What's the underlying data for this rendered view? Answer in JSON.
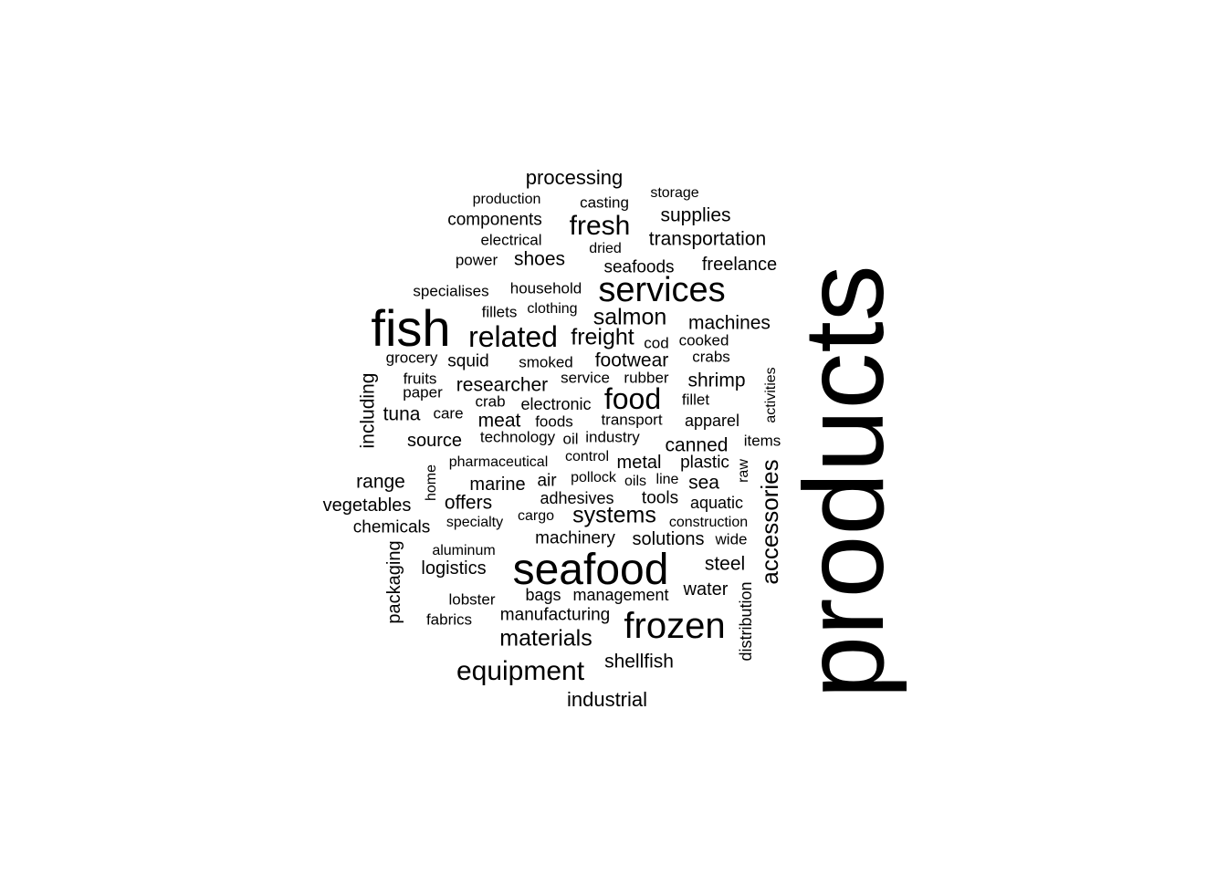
{
  "text_color": "#000000",
  "background_color": "#ffffff",
  "words": [
    {
      "id": "products",
      "text": "products",
      "orientation": "vertical"
    },
    {
      "id": "seafood",
      "text": "seafood",
      "orientation": "horizontal"
    },
    {
      "id": "fish",
      "text": "fish",
      "orientation": "horizontal"
    },
    {
      "id": "services",
      "text": "services",
      "orientation": "horizontal"
    },
    {
      "id": "frozen",
      "text": "frozen",
      "orientation": "horizontal"
    },
    {
      "id": "related",
      "text": "related",
      "orientation": "horizontal"
    },
    {
      "id": "equipment",
      "text": "equipment",
      "orientation": "horizontal"
    },
    {
      "id": "food",
      "text": "food",
      "orientation": "horizontal"
    },
    {
      "id": "fresh",
      "text": "fresh",
      "orientation": "horizontal"
    },
    {
      "id": "materials",
      "text": "materials",
      "orientation": "horizontal"
    },
    {
      "id": "salmon",
      "text": "salmon",
      "orientation": "horizontal"
    },
    {
      "id": "freight",
      "text": "freight",
      "orientation": "horizontal"
    },
    {
      "id": "accessories",
      "text": "accessories",
      "orientation": "vertical"
    },
    {
      "id": "systems",
      "text": "systems",
      "orientation": "horizontal"
    },
    {
      "id": "processing",
      "text": "processing",
      "orientation": "horizontal"
    },
    {
      "id": "industrial",
      "text": "industrial",
      "orientation": "horizontal"
    },
    {
      "id": "machines",
      "text": "machines",
      "orientation": "horizontal"
    },
    {
      "id": "transportation",
      "text": "transportation",
      "orientation": "horizontal"
    },
    {
      "id": "supplies",
      "text": "supplies",
      "orientation": "horizontal"
    },
    {
      "id": "shellfish",
      "text": "shellfish",
      "orientation": "horizontal"
    },
    {
      "id": "freelance",
      "text": "freelance",
      "orientation": "horizontal"
    },
    {
      "id": "footwear",
      "text": "footwear",
      "orientation": "horizontal"
    },
    {
      "id": "shoes",
      "text": "shoes",
      "orientation": "horizontal"
    },
    {
      "id": "components",
      "text": "components",
      "orientation": "horizontal"
    },
    {
      "id": "researcher",
      "text": "researcher",
      "orientation": "horizontal"
    },
    {
      "id": "shrimp",
      "text": "shrimp",
      "orientation": "horizontal"
    },
    {
      "id": "canned",
      "text": "canned",
      "orientation": "horizontal"
    },
    {
      "id": "meat",
      "text": "meat",
      "orientation": "horizontal"
    },
    {
      "id": "range",
      "text": "range",
      "orientation": "horizontal"
    },
    {
      "id": "vegetables",
      "text": "vegetables",
      "orientation": "horizontal"
    },
    {
      "id": "offers",
      "text": "offers",
      "orientation": "horizontal"
    },
    {
      "id": "logistics",
      "text": "logistics",
      "orientation": "horizontal"
    },
    {
      "id": "solutions",
      "text": "solutions",
      "orientation": "horizontal"
    },
    {
      "id": "steel",
      "text": "steel",
      "orientation": "horizontal"
    },
    {
      "id": "water",
      "text": "water",
      "orientation": "horizontal"
    },
    {
      "id": "manufacturing",
      "text": "manufacturing",
      "orientation": "horizontal"
    },
    {
      "id": "including",
      "text": "including",
      "orientation": "vertical"
    },
    {
      "id": "packaging",
      "text": "packaging",
      "orientation": "vertical"
    },
    {
      "id": "tuna",
      "text": "tuna",
      "orientation": "horizontal"
    },
    {
      "id": "source",
      "text": "source",
      "orientation": "horizontal"
    },
    {
      "id": "marine",
      "text": "marine",
      "orientation": "horizontal"
    },
    {
      "id": "metal",
      "text": "metal",
      "orientation": "horizontal"
    },
    {
      "id": "sea",
      "text": "sea",
      "orientation": "horizontal"
    },
    {
      "id": "machinery",
      "text": "machinery",
      "orientation": "horizontal"
    },
    {
      "id": "seafoods",
      "text": "seafoods",
      "orientation": "horizontal"
    },
    {
      "id": "chemicals",
      "text": "chemicals",
      "orientation": "horizontal"
    },
    {
      "id": "squid",
      "text": "squid",
      "orientation": "horizontal"
    },
    {
      "id": "air",
      "text": "air",
      "orientation": "horizontal"
    },
    {
      "id": "tools",
      "text": "tools",
      "orientation": "horizontal"
    },
    {
      "id": "adhesives",
      "text": "adhesives",
      "orientation": "horizontal"
    },
    {
      "id": "electronic",
      "text": "electronic",
      "orientation": "horizontal"
    },
    {
      "id": "plastic",
      "text": "plastic",
      "orientation": "horizontal"
    },
    {
      "id": "aquatic",
      "text": "aquatic",
      "orientation": "horizontal"
    },
    {
      "id": "apparel",
      "text": "apparel",
      "orientation": "horizontal"
    },
    {
      "id": "management",
      "text": "management",
      "orientation": "horizontal"
    },
    {
      "id": "bags",
      "text": "bags",
      "orientation": "horizontal"
    },
    {
      "id": "distribution",
      "text": "distribution",
      "orientation": "vertical"
    },
    {
      "id": "electrical",
      "text": "electrical",
      "orientation": "horizontal"
    },
    {
      "id": "power",
      "text": "power",
      "orientation": "horizontal"
    },
    {
      "id": "casting",
      "text": "casting",
      "orientation": "horizontal"
    },
    {
      "id": "specialises",
      "text": "specialises",
      "orientation": "horizontal"
    },
    {
      "id": "household",
      "text": "household",
      "orientation": "horizontal"
    },
    {
      "id": "foods",
      "text": "foods",
      "orientation": "horizontal"
    },
    {
      "id": "smoked",
      "text": "smoked",
      "orientation": "horizontal"
    },
    {
      "id": "grocery",
      "text": "grocery",
      "orientation": "horizontal"
    },
    {
      "id": "fruits",
      "text": "fruits",
      "orientation": "horizontal"
    },
    {
      "id": "crab",
      "text": "crab",
      "orientation": "horizontal"
    },
    {
      "id": "cod",
      "text": "cod",
      "orientation": "horizontal"
    },
    {
      "id": "cooked",
      "text": "cooked",
      "orientation": "horizontal"
    },
    {
      "id": "crabs",
      "text": "crabs",
      "orientation": "horizontal"
    },
    {
      "id": "service",
      "text": "service",
      "orientation": "horizontal"
    },
    {
      "id": "rubber",
      "text": "rubber",
      "orientation": "horizontal"
    },
    {
      "id": "fillet",
      "text": "fillet",
      "orientation": "horizontal"
    },
    {
      "id": "fillets",
      "text": "fillets",
      "orientation": "horizontal"
    },
    {
      "id": "paper",
      "text": "paper",
      "orientation": "horizontal"
    },
    {
      "id": "care",
      "text": "care",
      "orientation": "horizontal"
    },
    {
      "id": "transport",
      "text": "transport",
      "orientation": "horizontal"
    },
    {
      "id": "industry",
      "text": "industry",
      "orientation": "horizontal"
    },
    {
      "id": "items",
      "text": "items",
      "orientation": "horizontal"
    },
    {
      "id": "technology",
      "text": "technology",
      "orientation": "horizontal"
    },
    {
      "id": "oil",
      "text": "oil",
      "orientation": "horizontal"
    },
    {
      "id": "control",
      "text": "control",
      "orientation": "horizontal"
    },
    {
      "id": "pharmaceutical",
      "text": "pharmaceutical",
      "orientation": "horizontal"
    },
    {
      "id": "pollock",
      "text": "pollock",
      "orientation": "horizontal"
    },
    {
      "id": "oils",
      "text": "oils",
      "orientation": "horizontal"
    },
    {
      "id": "line",
      "text": "line",
      "orientation": "horizontal"
    },
    {
      "id": "specialty",
      "text": "specialty",
      "orientation": "horizontal"
    },
    {
      "id": "cargo",
      "text": "cargo",
      "orientation": "horizontal"
    },
    {
      "id": "construction",
      "text": "construction",
      "orientation": "horizontal"
    },
    {
      "id": "wide",
      "text": "wide",
      "orientation": "horizontal"
    },
    {
      "id": "aluminum",
      "text": "aluminum",
      "orientation": "horizontal"
    },
    {
      "id": "lobster",
      "text": "lobster",
      "orientation": "horizontal"
    },
    {
      "id": "fabrics",
      "text": "fabrics",
      "orientation": "horizontal"
    },
    {
      "id": "production",
      "text": "production",
      "orientation": "horizontal"
    },
    {
      "id": "storage",
      "text": "storage",
      "orientation": "horizontal"
    },
    {
      "id": "dried",
      "text": "dried",
      "orientation": "horizontal"
    },
    {
      "id": "clothing",
      "text": "clothing",
      "orientation": "horizontal"
    },
    {
      "id": "home",
      "text": "home",
      "orientation": "vertical"
    },
    {
      "id": "raw",
      "text": "raw",
      "orientation": "vertical"
    },
    {
      "id": "activities",
      "text": "activities",
      "orientation": "vertical"
    }
  ]
}
